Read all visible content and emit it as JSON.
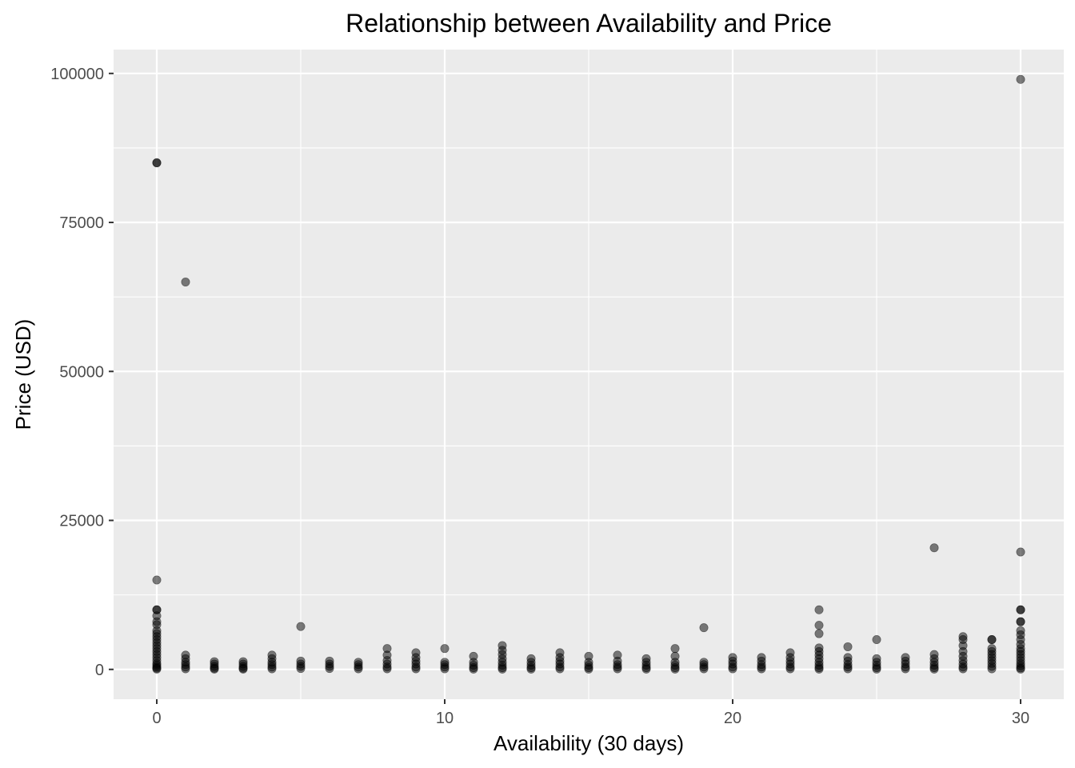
{
  "chart_data": {
    "type": "scatter",
    "title": "Relationship between Availability and Price",
    "xlabel": "Availability (30 days)",
    "ylabel": "Price (USD)",
    "xlim": [
      -1.5,
      31.5
    ],
    "ylim": [
      -5000,
      104000
    ],
    "x_ticks": [
      0,
      10,
      20,
      30
    ],
    "x_tick_labels": [
      "0",
      "10",
      "20",
      "30"
    ],
    "y_ticks": [
      0,
      25000,
      50000,
      75000,
      100000
    ],
    "y_tick_labels": [
      "0",
      "25000",
      "50000",
      "75000",
      "100000"
    ],
    "x_minor_gridlines": [
      5,
      15,
      25
    ],
    "y_minor_gridlines": [
      12500,
      37500,
      62500,
      87500
    ],
    "grid": true,
    "background": "#ebebeb",
    "grid_color": "#ffffff",
    "point_color": "#000000",
    "point_opacity": 0.5,
    "points": [
      {
        "x": 0,
        "y": 85000
      },
      {
        "x": 0,
        "y": 85000
      },
      {
        "x": 0,
        "y": 15000
      },
      {
        "x": 0,
        "y": 10000
      },
      {
        "x": 0,
        "y": 10000
      },
      {
        "x": 0,
        "y": 9000
      },
      {
        "x": 0,
        "y": 8000
      },
      {
        "x": 0,
        "y": 7500
      },
      {
        "x": 0,
        "y": 6500
      },
      {
        "x": 0,
        "y": 6000
      },
      {
        "x": 0,
        "y": 5500
      },
      {
        "x": 0,
        "y": 5000
      },
      {
        "x": 0,
        "y": 4500
      },
      {
        "x": 0,
        "y": 4000
      },
      {
        "x": 0,
        "y": 3500
      },
      {
        "x": 0,
        "y": 3000
      },
      {
        "x": 0,
        "y": 2500
      },
      {
        "x": 0,
        "y": 2000
      },
      {
        "x": 0,
        "y": 1500
      },
      {
        "x": 0,
        "y": 1000
      },
      {
        "x": 0,
        "y": 700
      },
      {
        "x": 0,
        "y": 400
      },
      {
        "x": 0,
        "y": 200
      },
      {
        "x": 0,
        "y": 50
      },
      {
        "x": 1,
        "y": 65000
      },
      {
        "x": 1,
        "y": 2400
      },
      {
        "x": 1,
        "y": 1800
      },
      {
        "x": 1,
        "y": 1200
      },
      {
        "x": 1,
        "y": 800
      },
      {
        "x": 1,
        "y": 400
      },
      {
        "x": 1,
        "y": 100
      },
      {
        "x": 2,
        "y": 1300
      },
      {
        "x": 2,
        "y": 900
      },
      {
        "x": 2,
        "y": 500
      },
      {
        "x": 2,
        "y": 200
      },
      {
        "x": 2,
        "y": 50
      },
      {
        "x": 3,
        "y": 1300
      },
      {
        "x": 3,
        "y": 900
      },
      {
        "x": 3,
        "y": 500
      },
      {
        "x": 3,
        "y": 200
      },
      {
        "x": 3,
        "y": 50
      },
      {
        "x": 4,
        "y": 2400
      },
      {
        "x": 4,
        "y": 1800
      },
      {
        "x": 4,
        "y": 1200
      },
      {
        "x": 4,
        "y": 800
      },
      {
        "x": 4,
        "y": 400
      },
      {
        "x": 4,
        "y": 100
      },
      {
        "x": 5,
        "y": 7200
      },
      {
        "x": 5,
        "y": 1400
      },
      {
        "x": 5,
        "y": 900
      },
      {
        "x": 5,
        "y": 500
      },
      {
        "x": 5,
        "y": 150
      },
      {
        "x": 6,
        "y": 1400
      },
      {
        "x": 6,
        "y": 900
      },
      {
        "x": 6,
        "y": 500
      },
      {
        "x": 6,
        "y": 150
      },
      {
        "x": 7,
        "y": 1200
      },
      {
        "x": 7,
        "y": 800
      },
      {
        "x": 7,
        "y": 400
      },
      {
        "x": 7,
        "y": 100
      },
      {
        "x": 8,
        "y": 3500
      },
      {
        "x": 8,
        "y": 2400
      },
      {
        "x": 8,
        "y": 1500
      },
      {
        "x": 8,
        "y": 900
      },
      {
        "x": 8,
        "y": 400
      },
      {
        "x": 8,
        "y": 100
      },
      {
        "x": 9,
        "y": 2800
      },
      {
        "x": 9,
        "y": 2000
      },
      {
        "x": 9,
        "y": 1400
      },
      {
        "x": 9,
        "y": 900
      },
      {
        "x": 9,
        "y": 400
      },
      {
        "x": 9,
        "y": 100
      },
      {
        "x": 10,
        "y": 3500
      },
      {
        "x": 10,
        "y": 1200
      },
      {
        "x": 10,
        "y": 800
      },
      {
        "x": 10,
        "y": 400
      },
      {
        "x": 10,
        "y": 100
      },
      {
        "x": 11,
        "y": 2200
      },
      {
        "x": 11,
        "y": 1200
      },
      {
        "x": 11,
        "y": 700
      },
      {
        "x": 11,
        "y": 300
      },
      {
        "x": 11,
        "y": 50
      },
      {
        "x": 12,
        "y": 4000
      },
      {
        "x": 12,
        "y": 3200
      },
      {
        "x": 12,
        "y": 2500
      },
      {
        "x": 12,
        "y": 1800
      },
      {
        "x": 12,
        "y": 1200
      },
      {
        "x": 12,
        "y": 700
      },
      {
        "x": 12,
        "y": 300
      },
      {
        "x": 12,
        "y": 50
      },
      {
        "x": 13,
        "y": 1800
      },
      {
        "x": 13,
        "y": 1200
      },
      {
        "x": 13,
        "y": 700
      },
      {
        "x": 13,
        "y": 300
      },
      {
        "x": 13,
        "y": 50
      },
      {
        "x": 14,
        "y": 2800
      },
      {
        "x": 14,
        "y": 2000
      },
      {
        "x": 14,
        "y": 1400
      },
      {
        "x": 14,
        "y": 900
      },
      {
        "x": 14,
        "y": 400
      },
      {
        "x": 14,
        "y": 100
      },
      {
        "x": 15,
        "y": 2200
      },
      {
        "x": 15,
        "y": 1200
      },
      {
        "x": 15,
        "y": 700
      },
      {
        "x": 15,
        "y": 300
      },
      {
        "x": 15,
        "y": 50
      },
      {
        "x": 16,
        "y": 2400
      },
      {
        "x": 16,
        "y": 1400
      },
      {
        "x": 16,
        "y": 800
      },
      {
        "x": 16,
        "y": 400
      },
      {
        "x": 16,
        "y": 100
      },
      {
        "x": 17,
        "y": 1800
      },
      {
        "x": 17,
        "y": 1200
      },
      {
        "x": 17,
        "y": 700
      },
      {
        "x": 17,
        "y": 300
      },
      {
        "x": 17,
        "y": 50
      },
      {
        "x": 18,
        "y": 3500
      },
      {
        "x": 18,
        "y": 2200
      },
      {
        "x": 18,
        "y": 1200
      },
      {
        "x": 18,
        "y": 700
      },
      {
        "x": 18,
        "y": 300
      },
      {
        "x": 18,
        "y": 50
      },
      {
        "x": 19,
        "y": 7000
      },
      {
        "x": 19,
        "y": 1200
      },
      {
        "x": 19,
        "y": 800
      },
      {
        "x": 19,
        "y": 400
      },
      {
        "x": 19,
        "y": 100
      },
      {
        "x": 20,
        "y": 2000
      },
      {
        "x": 20,
        "y": 1400
      },
      {
        "x": 20,
        "y": 900
      },
      {
        "x": 20,
        "y": 400
      },
      {
        "x": 20,
        "y": 100
      },
      {
        "x": 21,
        "y": 2000
      },
      {
        "x": 21,
        "y": 1400
      },
      {
        "x": 21,
        "y": 800
      },
      {
        "x": 21,
        "y": 400
      },
      {
        "x": 21,
        "y": 100
      },
      {
        "x": 22,
        "y": 2800
      },
      {
        "x": 22,
        "y": 2000
      },
      {
        "x": 22,
        "y": 1400
      },
      {
        "x": 22,
        "y": 900
      },
      {
        "x": 22,
        "y": 400
      },
      {
        "x": 22,
        "y": 100
      },
      {
        "x": 23,
        "y": 10000
      },
      {
        "x": 23,
        "y": 7400
      },
      {
        "x": 23,
        "y": 6000
      },
      {
        "x": 23,
        "y": 3600
      },
      {
        "x": 23,
        "y": 3000
      },
      {
        "x": 23,
        "y": 2400
      },
      {
        "x": 23,
        "y": 1800
      },
      {
        "x": 23,
        "y": 1200
      },
      {
        "x": 23,
        "y": 700
      },
      {
        "x": 23,
        "y": 300
      },
      {
        "x": 23,
        "y": 50
      },
      {
        "x": 24,
        "y": 3800
      },
      {
        "x": 24,
        "y": 2000
      },
      {
        "x": 24,
        "y": 1400
      },
      {
        "x": 24,
        "y": 800
      },
      {
        "x": 24,
        "y": 400
      },
      {
        "x": 24,
        "y": 100
      },
      {
        "x": 25,
        "y": 5000
      },
      {
        "x": 25,
        "y": 1800
      },
      {
        "x": 25,
        "y": 1200
      },
      {
        "x": 25,
        "y": 700
      },
      {
        "x": 25,
        "y": 300
      },
      {
        "x": 25,
        "y": 50
      },
      {
        "x": 26,
        "y": 2000
      },
      {
        "x": 26,
        "y": 1400
      },
      {
        "x": 26,
        "y": 900
      },
      {
        "x": 26,
        "y": 400
      },
      {
        "x": 26,
        "y": 100
      },
      {
        "x": 27,
        "y": 20400
      },
      {
        "x": 27,
        "y": 2500
      },
      {
        "x": 27,
        "y": 1800
      },
      {
        "x": 27,
        "y": 1200
      },
      {
        "x": 27,
        "y": 700
      },
      {
        "x": 27,
        "y": 300
      },
      {
        "x": 27,
        "y": 50
      },
      {
        "x": 28,
        "y": 5500
      },
      {
        "x": 28,
        "y": 5000
      },
      {
        "x": 28,
        "y": 4000
      },
      {
        "x": 28,
        "y": 3000
      },
      {
        "x": 28,
        "y": 2200
      },
      {
        "x": 28,
        "y": 1500
      },
      {
        "x": 28,
        "y": 900
      },
      {
        "x": 28,
        "y": 400
      },
      {
        "x": 28,
        "y": 100
      },
      {
        "x": 29,
        "y": 5000
      },
      {
        "x": 29,
        "y": 5000
      },
      {
        "x": 29,
        "y": 3500
      },
      {
        "x": 29,
        "y": 3000
      },
      {
        "x": 29,
        "y": 2500
      },
      {
        "x": 29,
        "y": 2000
      },
      {
        "x": 29,
        "y": 1500
      },
      {
        "x": 29,
        "y": 1000
      },
      {
        "x": 29,
        "y": 500
      },
      {
        "x": 29,
        "y": 100
      },
      {
        "x": 30,
        "y": 99000
      },
      {
        "x": 30,
        "y": 19700
      },
      {
        "x": 30,
        "y": 10000
      },
      {
        "x": 30,
        "y": 10000
      },
      {
        "x": 30,
        "y": 8000
      },
      {
        "x": 30,
        "y": 8000
      },
      {
        "x": 30,
        "y": 6500
      },
      {
        "x": 30,
        "y": 5800
      },
      {
        "x": 30,
        "y": 5000
      },
      {
        "x": 30,
        "y": 4200
      },
      {
        "x": 30,
        "y": 3500
      },
      {
        "x": 30,
        "y": 3000
      },
      {
        "x": 30,
        "y": 2500
      },
      {
        "x": 30,
        "y": 2000
      },
      {
        "x": 30,
        "y": 1500
      },
      {
        "x": 30,
        "y": 1000
      },
      {
        "x": 30,
        "y": 600
      },
      {
        "x": 30,
        "y": 250
      },
      {
        "x": 30,
        "y": 50
      }
    ]
  }
}
